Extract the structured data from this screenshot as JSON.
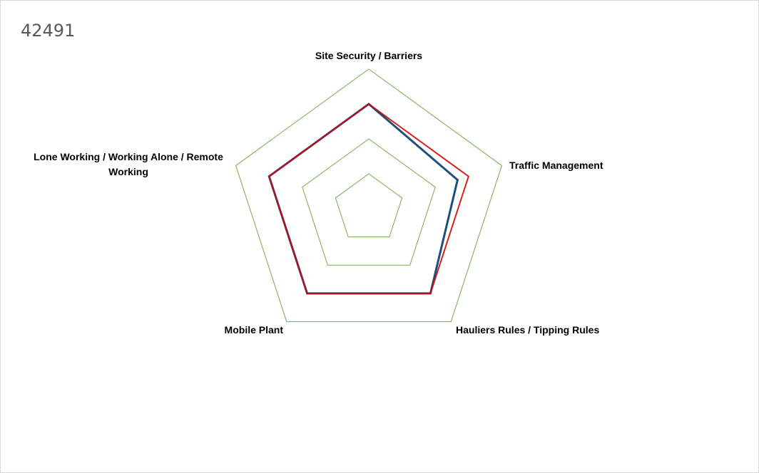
{
  "chart_data": {
    "type": "radar",
    "title": "42491",
    "categories": [
      "Site Security / Barriers",
      "Traffic Management",
      "Hauliers Rules / Tipping Rules",
      "Mobile Plant",
      "Lone Working / Working Alone / Remote Working"
    ],
    "series": [
      {
        "values": [
          3,
          2.67,
          3,
          3,
          3
        ],
        "color": "#1f4e79"
      },
      {
        "values": [
          3,
          3,
          3,
          3,
          3
        ],
        "color": "#e00000"
      }
    ],
    "rlim": [
      0,
      4
    ],
    "ring_step": 1,
    "grid_color": "#70ad47",
    "legend": "none"
  }
}
